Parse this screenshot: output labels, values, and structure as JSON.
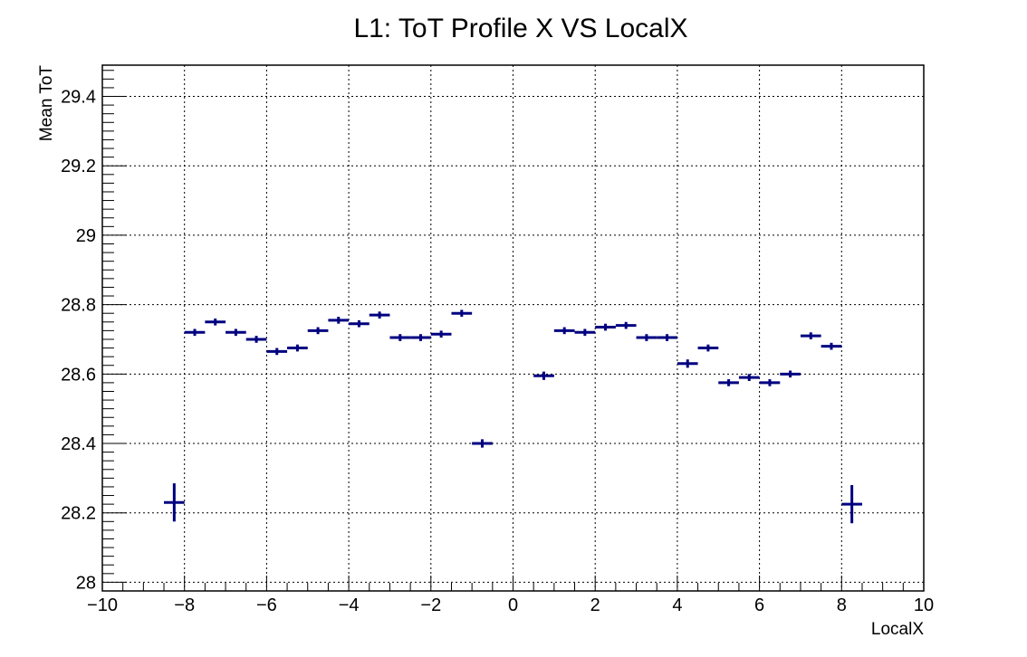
{
  "chart_data": {
    "type": "scatter",
    "title": "L1: ToT Profile X VS LocalX",
    "xlabel": "LocalX",
    "ylabel": "Mean ToT",
    "xlim": [
      -10,
      10
    ],
    "ylim": [
      27.975,
      29.49
    ],
    "x_ticks": [
      -10,
      -8,
      -6,
      -4,
      -2,
      0,
      2,
      4,
      6,
      8,
      10
    ],
    "x_tick_labels": [
      "−10",
      "−8",
      "−6",
      "−4",
      "−2",
      "0",
      "2",
      "4",
      "6",
      "8",
      "10"
    ],
    "y_ticks": [
      28,
      28.2,
      28.4,
      28.6,
      28.8,
      29,
      29.2,
      29.4
    ],
    "y_tick_labels": [
      "28",
      "28.2",
      "28.4",
      "28.6",
      "28.8",
      "29",
      "29.2",
      "29.4"
    ],
    "grid": true,
    "marker_color": "#000080",
    "x_bin_half_width": 0.25,
    "series": [
      {
        "points": [
          {
            "x": -8.25,
            "y": 28.23,
            "err": 0.055
          },
          {
            "x": -7.75,
            "y": 28.72,
            "err": 0.01
          },
          {
            "x": -7.25,
            "y": 28.75,
            "err": 0.01
          },
          {
            "x": -6.75,
            "y": 28.72,
            "err": 0.01
          },
          {
            "x": -6.25,
            "y": 28.7,
            "err": 0.01
          },
          {
            "x": -5.75,
            "y": 28.665,
            "err": 0.01
          },
          {
            "x": -5.25,
            "y": 28.675,
            "err": 0.01
          },
          {
            "x": -4.75,
            "y": 28.725,
            "err": 0.01
          },
          {
            "x": -4.25,
            "y": 28.755,
            "err": 0.01
          },
          {
            "x": -3.75,
            "y": 28.745,
            "err": 0.01
          },
          {
            "x": -3.25,
            "y": 28.77,
            "err": 0.01
          },
          {
            "x": -2.75,
            "y": 28.705,
            "err": 0.01
          },
          {
            "x": -2.25,
            "y": 28.705,
            "err": 0.01
          },
          {
            "x": -1.75,
            "y": 28.715,
            "err": 0.01
          },
          {
            "x": -1.25,
            "y": 28.775,
            "err": 0.01
          },
          {
            "x": -0.75,
            "y": 28.4,
            "err": 0.012
          },
          {
            "x": 0.75,
            "y": 28.595,
            "err": 0.012
          },
          {
            "x": 1.25,
            "y": 28.725,
            "err": 0.01
          },
          {
            "x": 1.75,
            "y": 28.72,
            "err": 0.01
          },
          {
            "x": 2.25,
            "y": 28.735,
            "err": 0.01
          },
          {
            "x": 2.75,
            "y": 28.74,
            "err": 0.01
          },
          {
            "x": 3.25,
            "y": 28.705,
            "err": 0.01
          },
          {
            "x": 3.75,
            "y": 28.705,
            "err": 0.01
          },
          {
            "x": 4.25,
            "y": 28.63,
            "err": 0.012
          },
          {
            "x": 4.75,
            "y": 28.675,
            "err": 0.01
          },
          {
            "x": 5.25,
            "y": 28.575,
            "err": 0.01
          },
          {
            "x": 5.75,
            "y": 28.59,
            "err": 0.01
          },
          {
            "x": 6.25,
            "y": 28.575,
            "err": 0.01
          },
          {
            "x": 6.75,
            "y": 28.6,
            "err": 0.01
          },
          {
            "x": 7.25,
            "y": 28.71,
            "err": 0.01
          },
          {
            "x": 7.75,
            "y": 28.68,
            "err": 0.01
          },
          {
            "x": 8.25,
            "y": 28.225,
            "err": 0.055
          }
        ]
      }
    ]
  }
}
